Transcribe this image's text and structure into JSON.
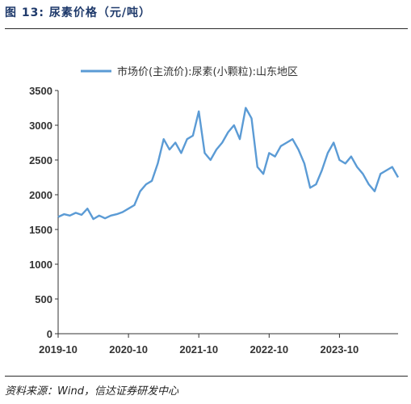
{
  "figure": {
    "title": "图 13:  尿素价格（元/吨）",
    "source": "资料来源：Wind，信达证券研发中心"
  },
  "colors": {
    "line": "#5b9bd5",
    "axis": "#333333"
  },
  "chart_data": {
    "type": "line",
    "title": "",
    "xlabel": "",
    "ylabel": "",
    "ylim": [
      0,
      3500
    ],
    "yticks": [
      0,
      500,
      1000,
      1500,
      2000,
      2500,
      3000,
      3500
    ],
    "xlim": [
      "2019-10",
      "2024-08"
    ],
    "xticks": [
      "2019-10",
      "2020-10",
      "2021-10",
      "2022-10",
      "2023-10"
    ],
    "grid": false,
    "legend_position": "top",
    "series": [
      {
        "name": "市场价(主流价):尿素(小颗粒):山东地区",
        "points": [
          [
            "2019-10-01",
            1680
          ],
          [
            "2019-11-01",
            1720
          ],
          [
            "2019-12-01",
            1700
          ],
          [
            "2020-01-01",
            1740
          ],
          [
            "2020-02-01",
            1710
          ],
          [
            "2020-03-01",
            1800
          ],
          [
            "2020-04-01",
            1650
          ],
          [
            "2020-05-01",
            1700
          ],
          [
            "2020-06-01",
            1660
          ],
          [
            "2020-07-01",
            1700
          ],
          [
            "2020-08-01",
            1720
          ],
          [
            "2020-09-01",
            1750
          ],
          [
            "2020-10-01",
            1800
          ],
          [
            "2020-11-01",
            1850
          ],
          [
            "2020-12-01",
            2050
          ],
          [
            "2021-01-01",
            2150
          ],
          [
            "2021-02-01",
            2200
          ],
          [
            "2021-03-01",
            2450
          ],
          [
            "2021-04-01",
            2800
          ],
          [
            "2021-05-01",
            2650
          ],
          [
            "2021-06-01",
            2750
          ],
          [
            "2021-07-01",
            2600
          ],
          [
            "2021-08-01",
            2800
          ],
          [
            "2021-09-01",
            2850
          ],
          [
            "2021-10-01",
            3200
          ],
          [
            "2021-11-01",
            2600
          ],
          [
            "2021-12-01",
            2500
          ],
          [
            "2022-01-01",
            2650
          ],
          [
            "2022-02-01",
            2750
          ],
          [
            "2022-03-01",
            2900
          ],
          [
            "2022-04-01",
            3000
          ],
          [
            "2022-05-01",
            2800
          ],
          [
            "2022-06-01",
            3250
          ],
          [
            "2022-07-01",
            3100
          ],
          [
            "2022-08-01",
            2400
          ],
          [
            "2022-09-01",
            2300
          ],
          [
            "2022-10-01",
            2600
          ],
          [
            "2022-11-01",
            2550
          ],
          [
            "2022-12-01",
            2700
          ],
          [
            "2023-01-01",
            2750
          ],
          [
            "2023-02-01",
            2800
          ],
          [
            "2023-03-01",
            2650
          ],
          [
            "2023-04-01",
            2450
          ],
          [
            "2023-05-01",
            2100
          ],
          [
            "2023-06-01",
            2150
          ],
          [
            "2023-07-01",
            2350
          ],
          [
            "2023-08-01",
            2600
          ],
          [
            "2023-09-01",
            2750
          ],
          [
            "2023-10-01",
            2500
          ],
          [
            "2023-11-01",
            2450
          ],
          [
            "2023-12-01",
            2550
          ],
          [
            "2024-01-01",
            2400
          ],
          [
            "2024-02-01",
            2300
          ],
          [
            "2024-03-01",
            2150
          ],
          [
            "2024-04-01",
            2050
          ],
          [
            "2024-05-01",
            2300
          ],
          [
            "2024-06-01",
            2350
          ],
          [
            "2024-07-01",
            2400
          ],
          [
            "2024-08-01",
            2250
          ]
        ]
      }
    ]
  }
}
